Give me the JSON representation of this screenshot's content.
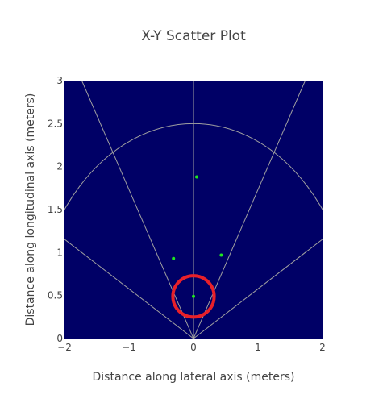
{
  "chart_data": {
    "type": "scatter",
    "title": "X-Y Scatter Plot",
    "xlabel": "Distance along lateral axis (meters)",
    "ylabel": "Distance along longitudinal axis (meters)",
    "xlim": [
      -2,
      2
    ],
    "ylim": [
      0,
      3
    ],
    "xticks": [
      "−2",
      "−1",
      "0",
      "1",
      "2"
    ],
    "yticks": [
      "0",
      "0.5",
      "1",
      "1.5",
      "2",
      "2.5",
      "3"
    ],
    "xtick_values": [
      -2,
      -1,
      0,
      1,
      2
    ],
    "ytick_values": [
      0,
      0.5,
      1,
      1.5,
      2,
      2.5,
      3
    ],
    "grid": false,
    "legend": "none",
    "points": [
      {
        "x": 0.05,
        "y": 1.88
      },
      {
        "x": -0.31,
        "y": 0.93
      },
      {
        "x": 0.43,
        "y": 0.97
      },
      {
        "x": 0.0,
        "y": 0.49
      }
    ],
    "overlay": {
      "arc_radius": 2.5,
      "ray_angles_deg_from_vertical": [
        -60,
        -30,
        0,
        30,
        60
      ],
      "highlight_circle": {
        "x": 0.0,
        "y": 0.49,
        "radius": 0.24
      }
    },
    "colors": {
      "plot_background": "#000066",
      "point": "#1ee81e",
      "guide_lines": "#a0a0a0",
      "highlight": "#e8202a",
      "text": "#444444"
    }
  }
}
